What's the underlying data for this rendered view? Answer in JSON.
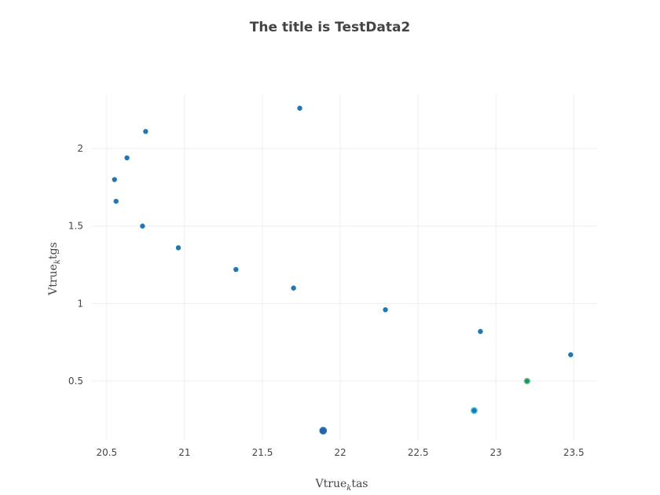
{
  "chart_data": {
    "type": "scatter",
    "title": "The title is TestData2",
    "xlabel": {
      "base": "Vtrue",
      "sub": "k",
      "rest": "tas"
    },
    "ylabel": {
      "base": "Vtrue",
      "sub": "k",
      "rest": "tgs"
    },
    "xlim": [
      20.4,
      23.65
    ],
    "ylim": [
      0.12,
      2.35
    ],
    "xticks": [
      20.5,
      21,
      21.5,
      22,
      22.5,
      23,
      23.5
    ],
    "yticks": [
      0.5,
      1,
      1.5,
      2
    ],
    "grid": true,
    "legend": "none",
    "points": [
      {
        "x": 20.55,
        "y": 1.8,
        "color": "#1f77b4"
      },
      {
        "x": 20.56,
        "y": 1.66,
        "color": "#1f77b4"
      },
      {
        "x": 20.63,
        "y": 1.94,
        "color": "#1f77b4"
      },
      {
        "x": 20.73,
        "y": 1.5,
        "color": "#1f77b4"
      },
      {
        "x": 20.75,
        "y": 2.11,
        "color": "#1f77b4"
      },
      {
        "x": 20.96,
        "y": 1.36,
        "color": "#1f77b4"
      },
      {
        "x": 21.33,
        "y": 1.22,
        "color": "#1f77b4"
      },
      {
        "x": 21.7,
        "y": 1.1,
        "color": "#1f77b4"
      },
      {
        "x": 21.74,
        "y": 2.26,
        "color": "#1f77b4"
      },
      {
        "x": 21.89,
        "y": 0.18,
        "color": "#2e5fa8",
        "outline": "#1f77b4",
        "size": 1.3
      },
      {
        "x": 22.29,
        "y": 0.96,
        "color": "#1f77b4"
      },
      {
        "x": 22.86,
        "y": 0.31,
        "color": "#1f77b4",
        "outline": "#5ad1e0",
        "size": 1.2
      },
      {
        "x": 22.9,
        "y": 0.82,
        "color": "#1f77b4"
      },
      {
        "x": 23.2,
        "y": 0.5,
        "color": "#2e8b57",
        "outline": "#6cc9a0",
        "size": 1.1
      },
      {
        "x": 23.48,
        "y": 0.67,
        "color": "#1f77b4"
      }
    ]
  }
}
